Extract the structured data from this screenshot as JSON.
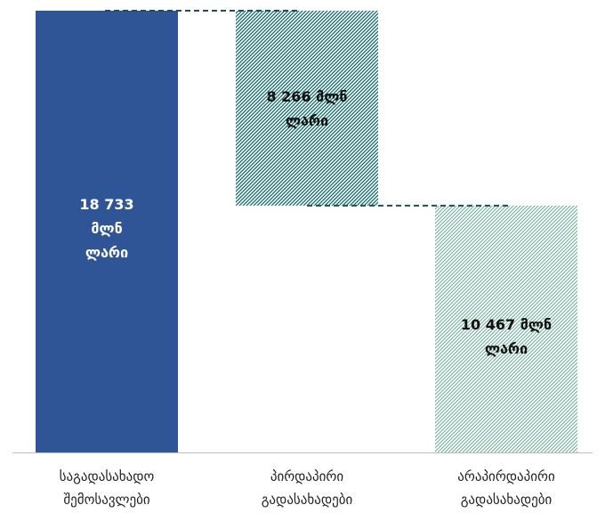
{
  "chart_data": {
    "type": "bar",
    "subtype": "waterfall",
    "categories": [
      [
        "საგადასახადო",
        "შემოსავლები"
      ],
      [
        "პირდაპირი",
        "გადასახადები"
      ],
      [
        "არაპირდაპირი",
        "გადასახადები"
      ]
    ],
    "values": [
      18733,
      8266,
      10467
    ],
    "data_labels": [
      [
        "18 733",
        "მლნ",
        "ლარი"
      ],
      [
        "8 266 მლნ",
        "ლარი"
      ],
      [
        "10 467 მლნ",
        "ლარი"
      ]
    ],
    "unit": "მლნ ლარი",
    "ylim": [
      0,
      18733
    ],
    "grid": false,
    "colors": {
      "total": "#2f5597",
      "direct": "#0f6b6b",
      "indirect": "#6fae97",
      "connector": "#1f4e5a",
      "axis": "#bfbfbf",
      "label_light": "#ffffff",
      "label_dark": "#111111"
    }
  }
}
